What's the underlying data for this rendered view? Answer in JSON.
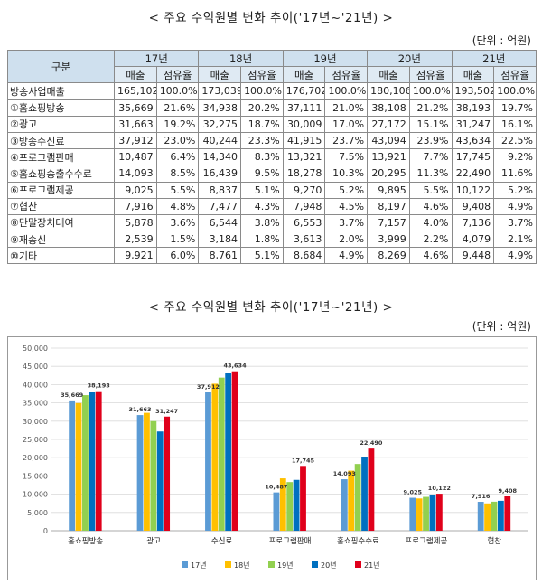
{
  "table_title": "< 주요 수익원별 변화 추이('17년~'21년) >",
  "table_unit": "(단위 : 억원)",
  "table": {
    "row_header": "구분",
    "years": [
      "17년",
      "18년",
      "19년",
      "20년",
      "21년"
    ],
    "sub_headers": [
      "매출",
      "점유율"
    ],
    "rows": [
      {
        "label": "방송사업매출",
        "cells": [
          "165,102",
          "100.0%",
          "173,039",
          "100.0%",
          "176,702",
          "100.0%",
          "180,106",
          "100.0%",
          "193,502",
          "100.0%"
        ]
      },
      {
        "label": "①홈쇼핑방송",
        "cells": [
          "35,669",
          "21.6%",
          "34,938",
          "20.2%",
          "37,111",
          "21.0%",
          "38,108",
          "21.2%",
          "38,193",
          "19.7%"
        ]
      },
      {
        "label": "②광고",
        "cells": [
          "31,663",
          "19.2%",
          "32,275",
          "18.7%",
          "30,009",
          "17.0%",
          "27,172",
          "15.1%",
          "31,247",
          "16.1%"
        ]
      },
      {
        "label": "③방송수신료",
        "cells": [
          "37,912",
          "23.0%",
          "40,244",
          "23.3%",
          "41,915",
          "23.7%",
          "43,094",
          "23.9%",
          "43,634",
          "22.5%"
        ]
      },
      {
        "label": "④프로그램판매",
        "cells": [
          "10,487",
          "6.4%",
          "14,340",
          "8.3%",
          "13,321",
          "7.5%",
          "13,921",
          "7.7%",
          "17,745",
          "9.2%"
        ]
      },
      {
        "label": "⑤홈쇼핑송출수수료",
        "cells": [
          "14,093",
          "8.5%",
          "16,439",
          "9.5%",
          "18,278",
          "10.3%",
          "20,295",
          "11.3%",
          "22,490",
          "11.6%"
        ]
      },
      {
        "label": "⑥프로그램제공",
        "cells": [
          "9,025",
          "5.5%",
          "8,837",
          "5.1%",
          "9,270",
          "5.2%",
          "9,895",
          "5.5%",
          "10,122",
          "5.2%"
        ]
      },
      {
        "label": "⑦협찬",
        "cells": [
          "7,916",
          "4.8%",
          "7,477",
          "4.3%",
          "7,948",
          "4.5%",
          "8,197",
          "4.6%",
          "9,408",
          "4.9%"
        ]
      },
      {
        "label": "⑧단말장치대여",
        "cells": [
          "5,878",
          "3.6%",
          "6,544",
          "3.8%",
          "6,553",
          "3.7%",
          "7,157",
          "4.0%",
          "7,136",
          "3.7%"
        ]
      },
      {
        "label": "⑨재송신",
        "cells": [
          "2,539",
          "1.5%",
          "3,184",
          "1.8%",
          "3,613",
          "2.0%",
          "3,999",
          "2.2%",
          "4,079",
          "2.1%"
        ]
      },
      {
        "label": "⑩기타",
        "cells": [
          "9,921",
          "6.0%",
          "8,761",
          "5.1%",
          "8,684",
          "4.9%",
          "8,269",
          "4.6%",
          "9,448",
          "4.9%"
        ]
      }
    ]
  },
  "chart_title": "< 주요 수익원별 변화 추이('17년~'21년) >",
  "chart_unit": "(단위 : 억원)",
  "chart_data": {
    "type": "bar",
    "categories": [
      "홈쇼핑방송",
      "광고",
      "수신료",
      "프로그램판매",
      "홈쇼핑수수료",
      "프로그램제공",
      "협찬"
    ],
    "series": [
      {
        "name": "17년",
        "color": "#5b9bd5",
        "values": [
          35669,
          31663,
          37912,
          10487,
          14093,
          9025,
          7916
        ]
      },
      {
        "name": "18년",
        "color": "#ffc000",
        "values": [
          34938,
          32275,
          40244,
          14340,
          16439,
          8837,
          7477
        ]
      },
      {
        "name": "19년",
        "color": "#92d050",
        "values": [
          37111,
          30009,
          41915,
          13321,
          18278,
          9270,
          7948
        ]
      },
      {
        "name": "20년",
        "color": "#0070c0",
        "values": [
          38108,
          27172,
          43094,
          13921,
          20295,
          9895,
          8197
        ]
      },
      {
        "name": "21년",
        "color": "#e0001b",
        "values": [
          38193,
          31247,
          43634,
          17745,
          22490,
          10122,
          9408
        ]
      }
    ],
    "data_labels": [
      {
        "category": 0,
        "series": 0,
        "text": "35,669"
      },
      {
        "category": 0,
        "series": 4,
        "text": "38,193"
      },
      {
        "category": 1,
        "series": 0,
        "text": "31,663"
      },
      {
        "category": 1,
        "series": 4,
        "text": "31,247"
      },
      {
        "category": 2,
        "series": 0,
        "text": "37,912"
      },
      {
        "category": 2,
        "series": 4,
        "text": "43,634"
      },
      {
        "category": 3,
        "series": 0,
        "text": "10,487"
      },
      {
        "category": 3,
        "series": 4,
        "text": "17,745"
      },
      {
        "category": 4,
        "series": 0,
        "text": "14,093"
      },
      {
        "category": 4,
        "series": 4,
        "text": "22,490"
      },
      {
        "category": 5,
        "series": 0,
        "text": "9,025"
      },
      {
        "category": 5,
        "series": 4,
        "text": "10,122"
      },
      {
        "category": 6,
        "series": 0,
        "text": "7,916"
      },
      {
        "category": 6,
        "series": 4,
        "text": "9,408"
      }
    ],
    "ylim": [
      0,
      50000
    ],
    "yticks": [
      "0",
      "5,000",
      "10,000",
      "15,000",
      "20,000",
      "25,000",
      "30,000",
      "35,000",
      "40,000",
      "45,000",
      "50,000"
    ],
    "grid": true,
    "legend": "bottom"
  }
}
